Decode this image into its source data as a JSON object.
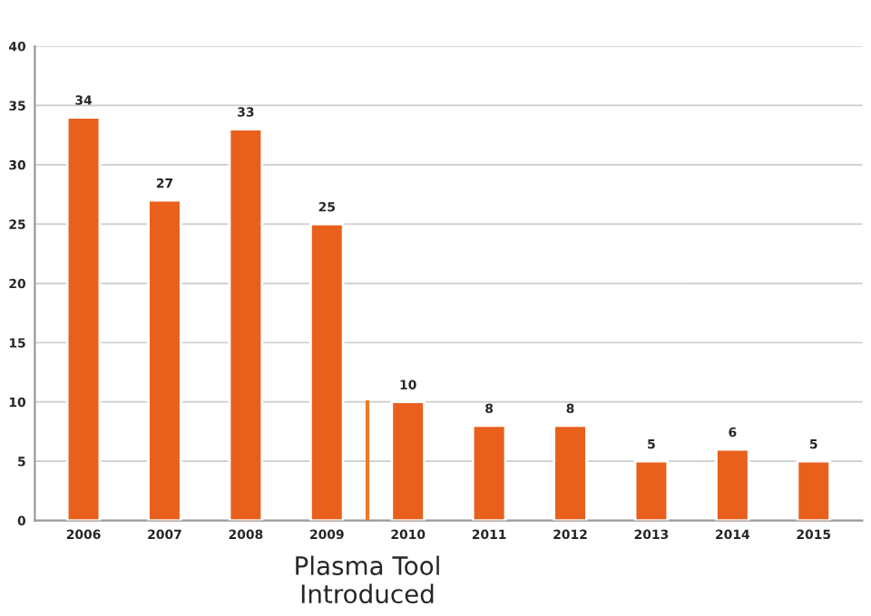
{
  "chart_data": {
    "type": "bar",
    "categories": [
      "2006",
      "2007",
      "2008",
      "2009",
      "2010",
      "2011",
      "2012",
      "2013",
      "2014",
      "2015"
    ],
    "values": [
      34,
      27,
      33,
      25,
      10,
      8,
      8,
      5,
      6,
      5
    ],
    "color": "#e8601c",
    "data_labels": true,
    "ylim": [
      0,
      40
    ],
    "yticks": [
      0,
      5,
      10,
      15,
      20,
      25,
      30,
      35,
      40
    ],
    "grid": "y",
    "ref_lines": [
      {
        "axis": "x",
        "value": "2010",
        "label": "Plasma Tool\nIntroduced",
        "color": "#f07828"
      }
    ]
  }
}
